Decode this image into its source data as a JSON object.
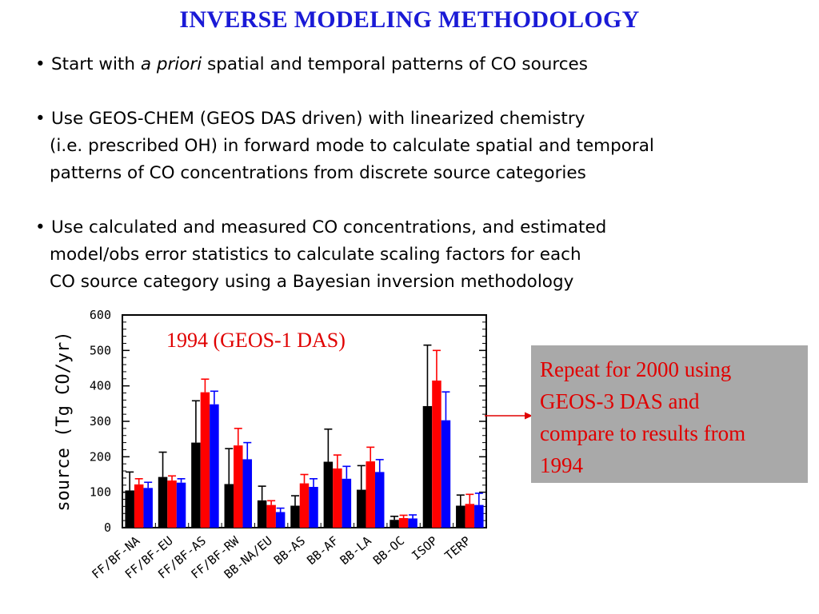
{
  "title": "INVERSE MODELING METHODOLOGY",
  "bullets": [
    {
      "symbol": "•",
      "lines": [
        {
          "pre": "Start with ",
          "italic": "a priori",
          "post": " spatial and temporal patterns of CO sources"
        }
      ]
    },
    {
      "symbol": "•",
      "lines": [
        {
          "text": "Use GEOS-CHEM (GEOS DAS driven) with linearized chemistry"
        },
        {
          "text": "(i.e. prescribed OH) in forward mode to calculate  spatial and temporal"
        },
        {
          "text": "patterns of CO  concentrations from discrete source categories"
        }
      ]
    },
    {
      "symbol": "•",
      "lines": [
        {
          "text": "Use calculated and measured CO concentrations, and estimated"
        },
        {
          "text": "model/obs error statistics to calculate scaling factors for each"
        },
        {
          "text": "CO source category using a Bayesian inversion methodology"
        }
      ]
    }
  ],
  "repeat_box": {
    "lines": [
      "Repeat for 2000 using",
      "GEOS-3 DAS and",
      "compare to results from",
      "1994"
    ],
    "text_color": "#e00000",
    "background": "#a9a9a9"
  },
  "chart_data": {
    "type": "bar",
    "annotation": "1994 (GEOS-1 DAS)",
    "ylabel": "source (Tg CO/yr)",
    "xlabel": "",
    "ylim": [
      0,
      600
    ],
    "yticks": [
      0,
      100,
      200,
      300,
      400,
      500,
      600
    ],
    "grid": false,
    "categories": [
      "FF/BF-NA",
      "FF/BF-EU",
      "FF/BF-AS",
      "FF/BF-RW",
      "BB-NA/EU",
      "BB-AS",
      "BB-AF",
      "BB-LA",
      "BB-OC",
      "ISOP",
      "TERP"
    ],
    "series": [
      {
        "color": "#000000",
        "values": [
          105,
          143,
          240,
          123,
          77,
          62,
          186,
          107,
          22,
          343,
          62
        ],
        "error": [
          52,
          70,
          118,
          100,
          40,
          28,
          92,
          68,
          10,
          172,
          30
        ]
      },
      {
        "color": "#ff0000",
        "values": [
          122,
          133,
          382,
          232,
          64,
          125,
          167,
          187,
          27,
          415,
          67
        ],
        "error": [
          16,
          13,
          37,
          48,
          12,
          25,
          38,
          40,
          8,
          85,
          27
        ]
      },
      {
        "color": "#0000ff",
        "values": [
          112,
          127,
          348,
          193,
          44,
          115,
          138,
          157,
          26,
          303,
          64
        ],
        "error": [
          16,
          11,
          37,
          47,
          11,
          23,
          35,
          35,
          10,
          80,
          33
        ]
      }
    ],
    "colors": {
      "axis": "#000000",
      "annotation": "#e00000",
      "arrow": "#e00000"
    }
  }
}
